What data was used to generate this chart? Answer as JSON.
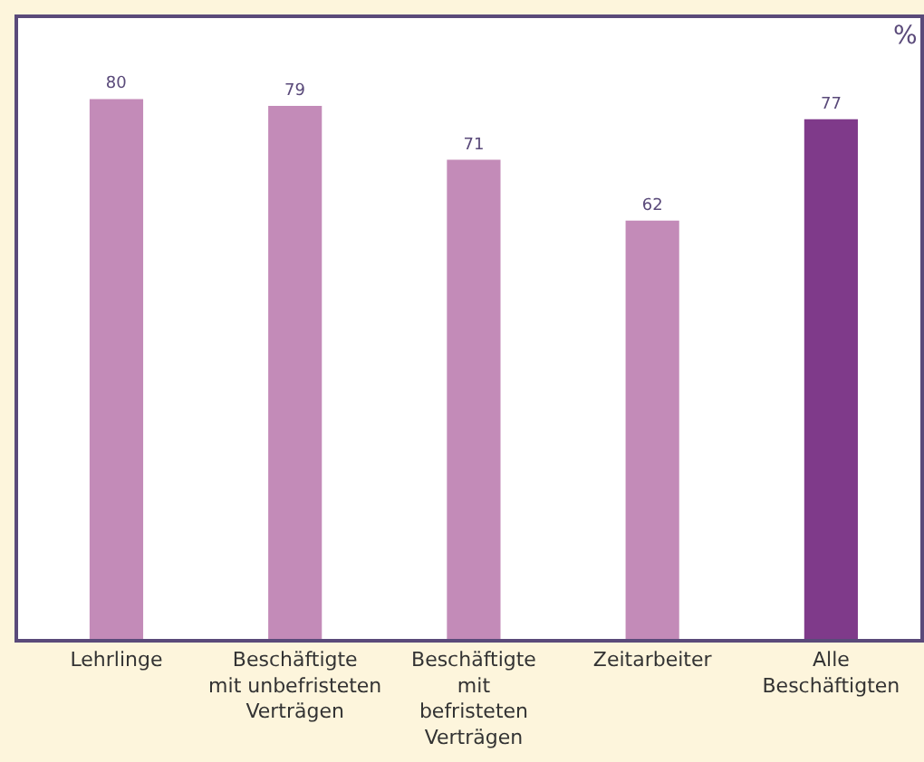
{
  "chart_data": {
    "type": "bar",
    "ylabel": "%",
    "categories": [
      "Lehrlinge",
      "Beschäftigte\nmit unbefristeten\nVerträgen",
      "Beschäftigte\nmit\nbefristeten\nVerträgen",
      "Zeitarbeiter",
      "Alle\nBeschäftigten"
    ],
    "values": [
      80,
      79,
      71,
      62,
      77
    ],
    "colors": [
      "#c38bb8",
      "#c38bb8",
      "#c38bb8",
      "#c38bb8",
      "#7f3a8a"
    ],
    "data_labels": true
  }
}
